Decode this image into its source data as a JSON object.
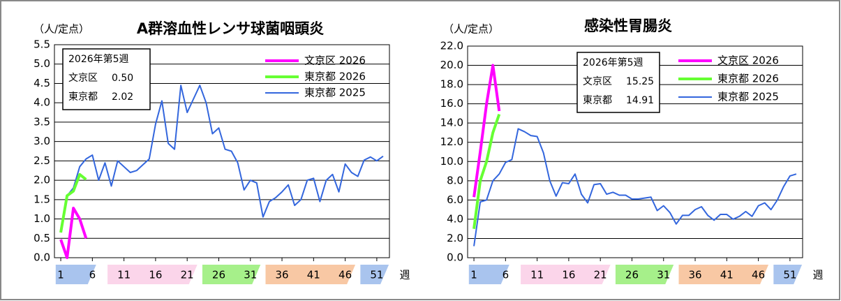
{
  "chart_data": [
    {
      "type": "line",
      "title": "A群溶血性レンサ球菌咽頭炎",
      "y_unit": "（人/定点）",
      "x_label": "週",
      "x": [
        1,
        2,
        3,
        4,
        5,
        6,
        7,
        8,
        9,
        10,
        11,
        12,
        13,
        14,
        15,
        16,
        17,
        18,
        19,
        20,
        21,
        22,
        23,
        24,
        25,
        26,
        27,
        28,
        29,
        30,
        31,
        32,
        33,
        34,
        35,
        36,
        37,
        38,
        39,
        40,
        41,
        42,
        43,
        44,
        45,
        46,
        47,
        48,
        49,
        50,
        51,
        52
      ],
      "xlim": [
        0,
        53
      ],
      "xticks": [
        1,
        6,
        11,
        16,
        21,
        26,
        31,
        36,
        41,
        46,
        51
      ],
      "ylim": [
        0,
        5.5
      ],
      "yticks": [
        {
          "value": 0,
          "label": "0.0"
        },
        {
          "value": 0.5,
          "label": "0.5"
        },
        {
          "value": 1,
          "label": "1.0"
        },
        {
          "value": 1.5,
          "label": "1.5"
        },
        {
          "value": 2,
          "label": "2.0"
        },
        {
          "value": 2.5,
          "label": "2.5"
        },
        {
          "value": 3,
          "label": "3.0"
        },
        {
          "value": 3.5,
          "label": "3.5"
        },
        {
          "value": 4,
          "label": "4.0"
        },
        {
          "value": 4.5,
          "label": "4.5"
        },
        {
          "value": 5,
          "label": "5.0"
        },
        {
          "value": 5.5,
          "label": "5.5"
        }
      ],
      "grid": true,
      "legend_position": "upper right",
      "series": [
        {
          "name": "文京区 2026",
          "color": "#ff00ff",
          "width": 4,
          "values": [
            0.47,
            0.0,
            1.28,
            1.0,
            0.5,
            null,
            null,
            null,
            null,
            null,
            null,
            null,
            null,
            null,
            null,
            null,
            null,
            null,
            null,
            null,
            null,
            null,
            null,
            null,
            null,
            null,
            null,
            null,
            null,
            null,
            null,
            null,
            null,
            null,
            null,
            null,
            null,
            null,
            null,
            null,
            null,
            null,
            null,
            null,
            null,
            null,
            null,
            null,
            null,
            null,
            null,
            null
          ]
        },
        {
          "name": "東京都 2026",
          "color": "#66ff33",
          "width": 4,
          "values": [
            0.65,
            1.6,
            1.72,
            2.15,
            2.02,
            null,
            null,
            null,
            null,
            null,
            null,
            null,
            null,
            null,
            null,
            null,
            null,
            null,
            null,
            null,
            null,
            null,
            null,
            null,
            null,
            null,
            null,
            null,
            null,
            null,
            null,
            null,
            null,
            null,
            null,
            null,
            null,
            null,
            null,
            null,
            null,
            null,
            null,
            null,
            null,
            null,
            null,
            null,
            null,
            null,
            null,
            null
          ]
        },
        {
          "name": "東京都 2025",
          "color": "#3366dd",
          "width": 2,
          "values": [
            0.7,
            1.6,
            1.8,
            2.35,
            2.55,
            2.65,
            2.0,
            2.45,
            1.85,
            2.5,
            2.35,
            2.2,
            2.25,
            2.4,
            2.55,
            3.45,
            4.05,
            2.95,
            2.8,
            4.45,
            3.75,
            4.1,
            4.45,
            4.0,
            3.2,
            3.35,
            2.8,
            2.75,
            2.45,
            1.75,
            2.0,
            1.93,
            1.05,
            1.45,
            1.55,
            1.7,
            1.88,
            1.35,
            1.5,
            2.0,
            2.05,
            1.45,
            2.0,
            2.15,
            1.7,
            2.42,
            2.2,
            2.1,
            2.52,
            2.6,
            2.5,
            2.62
          ]
        }
      ],
      "info_box": {
        "title": "2026年第5週",
        "rows": [
          {
            "label": "文京区",
            "value": "0.50"
          },
          {
            "label": "東京都",
            "value": "2.02"
          }
        ]
      }
    },
    {
      "type": "line",
      "title": "感染性胃腸炎",
      "y_unit": "（人/定点）",
      "x_label": "週",
      "x": [
        1,
        2,
        3,
        4,
        5,
        6,
        7,
        8,
        9,
        10,
        11,
        12,
        13,
        14,
        15,
        16,
        17,
        18,
        19,
        20,
        21,
        22,
        23,
        24,
        25,
        26,
        27,
        28,
        29,
        30,
        31,
        32,
        33,
        34,
        35,
        36,
        37,
        38,
        39,
        40,
        41,
        42,
        43,
        44,
        45,
        46,
        47,
        48,
        49,
        50,
        51,
        52
      ],
      "xlim": [
        0,
        53
      ],
      "xticks": [
        1,
        6,
        11,
        16,
        21,
        26,
        31,
        36,
        41,
        46,
        51
      ],
      "ylim": [
        0,
        22
      ],
      "yticks": [
        {
          "value": 0,
          "label": "0.0"
        },
        {
          "value": 2,
          "label": "2.0"
        },
        {
          "value": 4,
          "label": "4.0"
        },
        {
          "value": 6,
          "label": "6.0"
        },
        {
          "value": 8,
          "label": "8.0"
        },
        {
          "value": 10,
          "label": "10.0"
        },
        {
          "value": 12,
          "label": "12.0"
        },
        {
          "value": 14,
          "label": "14.0"
        },
        {
          "value": 16,
          "label": "16.0"
        },
        {
          "value": 18,
          "label": "18.0"
        },
        {
          "value": 20,
          "label": "20.0"
        },
        {
          "value": 22,
          "label": "22.0"
        }
      ],
      "grid": true,
      "legend_position": "upper right",
      "series": [
        {
          "name": "文京区 2026",
          "color": "#ff00ff",
          "width": 4,
          "values": [
            6.3,
            11.0,
            16.0,
            20.0,
            15.25,
            null,
            null,
            null,
            null,
            null,
            null,
            null,
            null,
            null,
            null,
            null,
            null,
            null,
            null,
            null,
            null,
            null,
            null,
            null,
            null,
            null,
            null,
            null,
            null,
            null,
            null,
            null,
            null,
            null,
            null,
            null,
            null,
            null,
            null,
            null,
            null,
            null,
            null,
            null,
            null,
            null,
            null,
            null,
            null,
            null,
            null,
            null
          ]
        },
        {
          "name": "東京都 2026",
          "color": "#66ff33",
          "width": 4,
          "values": [
            3.0,
            8.0,
            10.0,
            13.0,
            14.91,
            null,
            null,
            null,
            null,
            null,
            null,
            null,
            null,
            null,
            null,
            null,
            null,
            null,
            null,
            null,
            null,
            null,
            null,
            null,
            null,
            null,
            null,
            null,
            null,
            null,
            null,
            null,
            null,
            null,
            null,
            null,
            null,
            null,
            null,
            null,
            null,
            null,
            null,
            null,
            null,
            null,
            null,
            null,
            null,
            null,
            null,
            null
          ]
        },
        {
          "name": "東京都 2025",
          "color": "#3366dd",
          "width": 2,
          "values": [
            1.2,
            5.8,
            6.0,
            8.0,
            8.7,
            9.9,
            10.2,
            13.4,
            13.1,
            12.7,
            12.6,
            10.9,
            8.0,
            6.4,
            7.8,
            7.7,
            8.7,
            6.6,
            5.7,
            7.6,
            7.7,
            6.6,
            6.8,
            6.5,
            6.5,
            6.1,
            6.1,
            6.2,
            6.3,
            4.9,
            5.4,
            4.7,
            3.5,
            4.4,
            4.4,
            5.0,
            5.3,
            4.4,
            3.9,
            4.5,
            4.5,
            4.0,
            4.3,
            4.8,
            4.3,
            5.4,
            5.7,
            5.0,
            6.0,
            7.4,
            8.5,
            8.7
          ]
        }
      ],
      "info_box": {
        "title": "2026年第5週",
        "rows": [
          {
            "label": "文京区",
            "value": "15.25"
          },
          {
            "label": "東京都",
            "value": "14.91"
          }
        ]
      }
    }
  ]
}
